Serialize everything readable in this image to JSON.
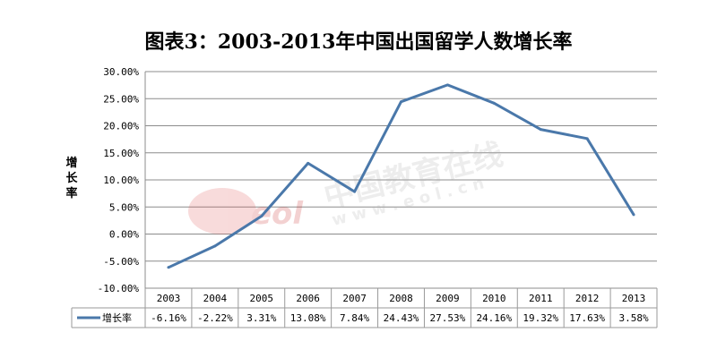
{
  "chart_data": {
    "type": "line",
    "title": "图表3：2003-2013年中国出国留学人数增长率",
    "ylabel": "增长率",
    "ylim": [
      -10,
      30
    ],
    "y_ticks": [
      "30.00%",
      "25.00%",
      "20.00%",
      "15.00%",
      "10.00%",
      "5.00%",
      "0.00%",
      "-5.00%",
      "-10.00%"
    ],
    "categories": [
      "2003",
      "2004",
      "2005",
      "2006",
      "2007",
      "2008",
      "2009",
      "2010",
      "2011",
      "2012",
      "2013"
    ],
    "series": [
      {
        "name": "增长率",
        "values": [
          -6.16,
          -2.22,
          3.31,
          13.08,
          7.84,
          24.43,
          27.53,
          24.16,
          19.32,
          17.63,
          3.58
        ],
        "labels": [
          "-6.16%",
          "-2.22%",
          "3.31%",
          "13.08%",
          "7.84%",
          "24.43%",
          "27.53%",
          "24.16%",
          "19.32%",
          "17.63%",
          "3.58%"
        ],
        "color": "#4a78aa"
      }
    ],
    "grid": true,
    "legend": "data-table"
  },
  "watermark": {
    "text": "中国教育在线",
    "url": "w w w . e o l . c n",
    "logo_text": "eol"
  }
}
